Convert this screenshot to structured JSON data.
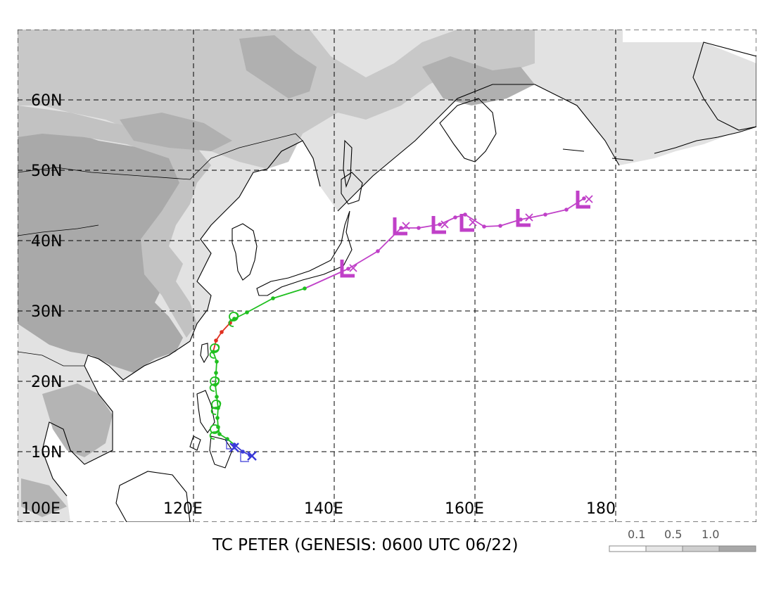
{
  "title": "TC PETER (GENESIS: 0600 UTC 06/22)",
  "lon_labels": [
    "100E",
    "120E",
    "140E",
    "160E",
    "180"
  ],
  "lat_labels": [
    "60N",
    "50N",
    "40N",
    "30N",
    "20N",
    "10N"
  ],
  "legend": {
    "labels": [
      "0.1",
      "0.5",
      "1.0"
    ],
    "colors": [
      "#ffffff",
      "#e6e6e6",
      "#cfcfcf",
      "#a8a8a8"
    ]
  },
  "colors": {
    "depression": "#3a3ad8",
    "storm": "#1fbf1f",
    "typhoon": "#e03020",
    "extratropical": "#c040c8",
    "land_light": "#e2e2e2",
    "land_mid": "#c8c8c8",
    "land_dark": "#a9a9a9"
  },
  "map_data": {
    "lon_range": [
      100,
      200
    ],
    "lat_range": [
      4,
      70
    ],
    "track": [
      {
        "lon": 133.0,
        "lat": 13.5,
        "stage": "depression"
      },
      {
        "lon": 132.0,
        "lat": 14.0,
        "stage": "depression"
      },
      {
        "lon": 130.8,
        "lat": 15.0,
        "stage": "depression"
      },
      {
        "lon": 129.8,
        "lat": 15.8,
        "stage": "storm"
      },
      {
        "lon": 128.7,
        "lat": 16.5,
        "stage": "storm"
      },
      {
        "lon": 128.5,
        "lat": 17.5,
        "stage": "storm"
      },
      {
        "lon": 128.4,
        "lat": 18.8,
        "stage": "storm"
      },
      {
        "lon": 128.5,
        "lat": 20.2,
        "stage": "storm"
      },
      {
        "lon": 128.3,
        "lat": 21.8,
        "stage": "storm"
      },
      {
        "lon": 128.1,
        "lat": 23.5,
        "stage": "storm"
      },
      {
        "lon": 128.2,
        "lat": 25.2,
        "stage": "storm"
      },
      {
        "lon": 128.3,
        "lat": 26.8,
        "stage": "storm"
      },
      {
        "lon": 127.8,
        "lat": 28.2,
        "stage": "storm"
      },
      {
        "lon": 128.2,
        "lat": 29.8,
        "stage": "typhoon"
      },
      {
        "lon": 129.0,
        "lat": 31.0,
        "stage": "typhoon"
      },
      {
        "lon": 130.2,
        "lat": 32.3,
        "stage": "typhoon"
      },
      {
        "lon": 130.8,
        "lat": 32.9,
        "stage": "storm"
      },
      {
        "lon": 132.6,
        "lat": 33.8,
        "stage": "storm"
      },
      {
        "lon": 136.3,
        "lat": 35.8,
        "stage": "storm"
      },
      {
        "lon": 140.8,
        "lat": 37.2,
        "stage": "storm"
      },
      {
        "lon": 147.0,
        "lat": 40.0,
        "stage": "extratropical"
      },
      {
        "lon": 151.2,
        "lat": 42.5,
        "stage": "extratropical"
      },
      {
        "lon": 154.5,
        "lat": 45.8,
        "stage": "extratropical"
      },
      {
        "lon": 157.0,
        "lat": 45.8,
        "stage": "extratropical"
      },
      {
        "lon": 160.0,
        "lat": 46.3,
        "stage": "extratropical"
      },
      {
        "lon": 162.2,
        "lat": 47.3,
        "stage": "extratropical"
      },
      {
        "lon": 163.6,
        "lat": 47.7,
        "stage": "extratropical"
      },
      {
        "lon": 166.3,
        "lat": 46.0,
        "stage": "extratropical"
      },
      {
        "lon": 168.6,
        "lat": 46.1,
        "stage": "extratropical"
      },
      {
        "lon": 171.5,
        "lat": 47.0,
        "stage": "extratropical"
      },
      {
        "lon": 175.0,
        "lat": 47.7,
        "stage": "extratropical"
      },
      {
        "lon": 178.0,
        "lat": 48.4,
        "stage": "extratropical"
      },
      {
        "lon": 180.5,
        "lat": 50.0,
        "stage": "extratropical"
      }
    ],
    "markers": [
      {
        "lon": 133.3,
        "lat": 13.4,
        "symbol": "x",
        "stage": "depression"
      },
      {
        "lon": 130.8,
        "lat": 14.6,
        "symbol": "x",
        "stage": "depression"
      },
      {
        "lon": 128.0,
        "lat": 16.8,
        "symbol": "storm",
        "stage": "storm"
      },
      {
        "lon": 128.2,
        "lat": 20.3,
        "symbol": "storm",
        "stage": "storm"
      },
      {
        "lon": 128.0,
        "lat": 23.6,
        "symbol": "storm",
        "stage": "storm"
      },
      {
        "lon": 128.0,
        "lat": 28.3,
        "symbol": "storm",
        "stage": "storm"
      },
      {
        "lon": 130.7,
        "lat": 32.8,
        "symbol": "storm",
        "stage": "storm"
      },
      {
        "lon": 147.0,
        "lat": 40.0,
        "symbol": "L",
        "stage": "extratropical"
      },
      {
        "lon": 154.5,
        "lat": 46.0,
        "symbol": "L",
        "stage": "extratropical"
      },
      {
        "lon": 160.0,
        "lat": 46.2,
        "symbol": "L",
        "stage": "extratropical"
      },
      {
        "lon": 164.0,
        "lat": 46.5,
        "symbol": "L",
        "stage": "extratropical"
      },
      {
        "lon": 172.0,
        "lat": 47.2,
        "symbol": "L",
        "stage": "extratropical"
      },
      {
        "lon": 180.5,
        "lat": 49.8,
        "symbol": "L",
        "stage": "extratropical"
      }
    ],
    "open_markers": [
      {
        "lon": 129.7,
        "lat": 14.4
      },
      {
        "lon": 131.7,
        "lat": 12.6
      }
    ]
  }
}
